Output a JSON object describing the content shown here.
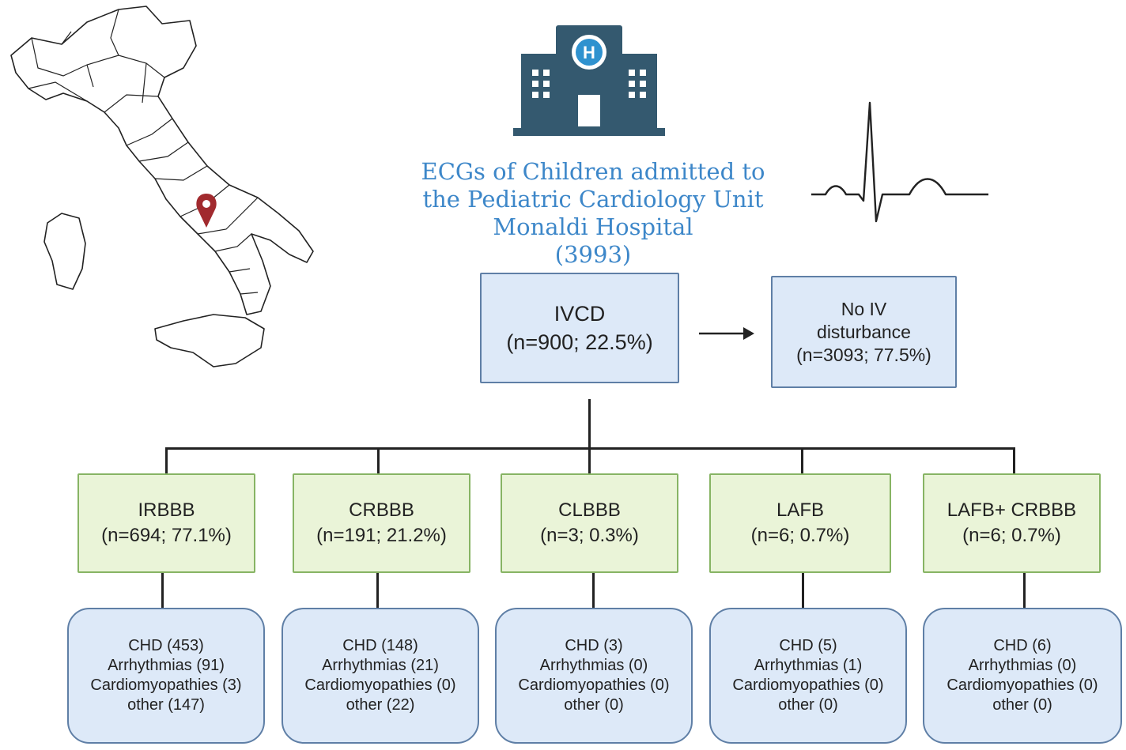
{
  "title": {
    "line1": "ECGs of Children admitted to",
    "line2": "the Pediatric Cardiology Unit",
    "line3": "Monaldi Hospital",
    "line4": "(3993)",
    "color": "#3d87c9"
  },
  "hospital_icon": {
    "name": "hospital-icon",
    "letter": "H",
    "color": "#34596f"
  },
  "map": {
    "name": "italy-map",
    "pin_color": "#a12a2e"
  },
  "ecg_wave": {
    "name": "ecg-wave-icon"
  },
  "ivcd": {
    "label": "IVCD",
    "stats": "(n=900; 22.5%)"
  },
  "no_iv": {
    "line1": "No IV",
    "line2": "disturbance",
    "stats": "(n=3093; 77.5%)"
  },
  "categories": [
    {
      "label": "IRBBB",
      "stats": "(n=694; 77.1%)",
      "details": [
        "CHD (453)",
        "Arrhythmias (91)",
        "Cardiomyopathies (3)",
        "other (147)"
      ]
    },
    {
      "label": "CRBBB",
      "stats": "(n=191; 21.2%)",
      "details": [
        "CHD (148)",
        "Arrhythmias (21)",
        "Cardiomyopathies (0)",
        "other (22)"
      ]
    },
    {
      "label": "CLBBB",
      "stats": "(n=3; 0.3%)",
      "details": [
        "CHD (3)",
        "Arrhythmias (0)",
        "Cardiomyopathies (0)",
        "other (0)"
      ]
    },
    {
      "label": "LAFB",
      "stats": "(n=6; 0.7%)",
      "details": [
        "CHD (5)",
        "Arrhythmias (1)",
        "Cardiomyopathies (0)",
        "other (0)"
      ]
    },
    {
      "label": "LAFB+ CRBBB",
      "stats": "(n=6; 0.7%)",
      "details": [
        "CHD (6)",
        "Arrhythmias (0)",
        "Cardiomyopathies (0)",
        "other (0)"
      ]
    }
  ]
}
